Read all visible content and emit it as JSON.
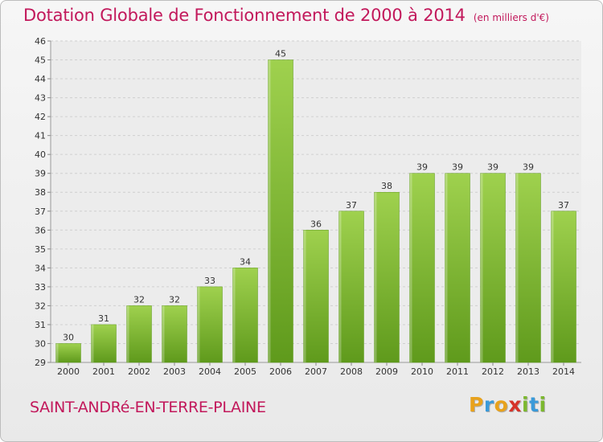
{
  "header": {
    "title": "Dotation Globale de Fonctionnement de 2000 à 2014",
    "unit": "(en milliers d'€)"
  },
  "footer": {
    "commune": "SAINT-ANDRé-EN-TERRE-PLAINE",
    "logo_letters": [
      "P",
      "r",
      "o",
      "x",
      "i",
      "t",
      "i"
    ],
    "logo_colors": [
      "#e8a21c",
      "#3a9ad9",
      "#e8a21c",
      "#d6332a",
      "#7cb82f",
      "#3a9ad9",
      "#7cb82f"
    ]
  },
  "chart_data": {
    "type": "bar",
    "categories": [
      "2000",
      "2001",
      "2002",
      "2003",
      "2004",
      "2005",
      "2006",
      "2007",
      "2008",
      "2009",
      "2010",
      "2011",
      "2012",
      "2013",
      "2014"
    ],
    "values": [
      30,
      31,
      32,
      32,
      33,
      34,
      45,
      36,
      37,
      38,
      39,
      39,
      39,
      39,
      37
    ],
    "ylim": [
      29,
      46
    ],
    "yticks": [
      29,
      30,
      31,
      32,
      33,
      34,
      35,
      36,
      37,
      38,
      39,
      40,
      41,
      42,
      43,
      44,
      45,
      46
    ],
    "grid": true,
    "bar_color": "#7cb82f",
    "bar_color_light": "#9fd14e",
    "bar_color_dark": "#5f9a1c"
  }
}
